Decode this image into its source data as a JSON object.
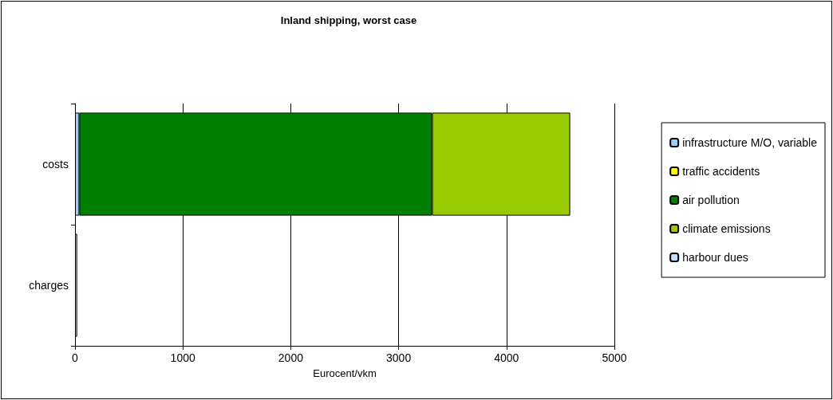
{
  "chart_data": {
    "type": "bar",
    "title": "Inland shipping, worst case",
    "xlabel": "Eurocent/vkm",
    "orientation": "horizontal",
    "stacked": true,
    "categories": [
      "costs",
      "charges"
    ],
    "series": [
      {
        "name": "infrastructure M/O, variable",
        "color": "#99ccff",
        "values": [
          40,
          null
        ]
      },
      {
        "name": "traffic accidents",
        "color": "#ffff00",
        "values": [
          null,
          null
        ]
      },
      {
        "name": "air pollution",
        "color": "#008000",
        "values": [
          3270,
          null
        ]
      },
      {
        "name": "climate emissions",
        "color": "#99cc00",
        "values": [
          1280,
          null
        ]
      },
      {
        "name": "harbour dues",
        "color": "#bfe0ff",
        "values": [
          null,
          20
        ]
      }
    ],
    "xlim": [
      0,
      5000
    ],
    "xticks": [
      0,
      1000,
      2000,
      3000,
      4000,
      5000
    ],
    "grid": "x",
    "legend": "right"
  }
}
